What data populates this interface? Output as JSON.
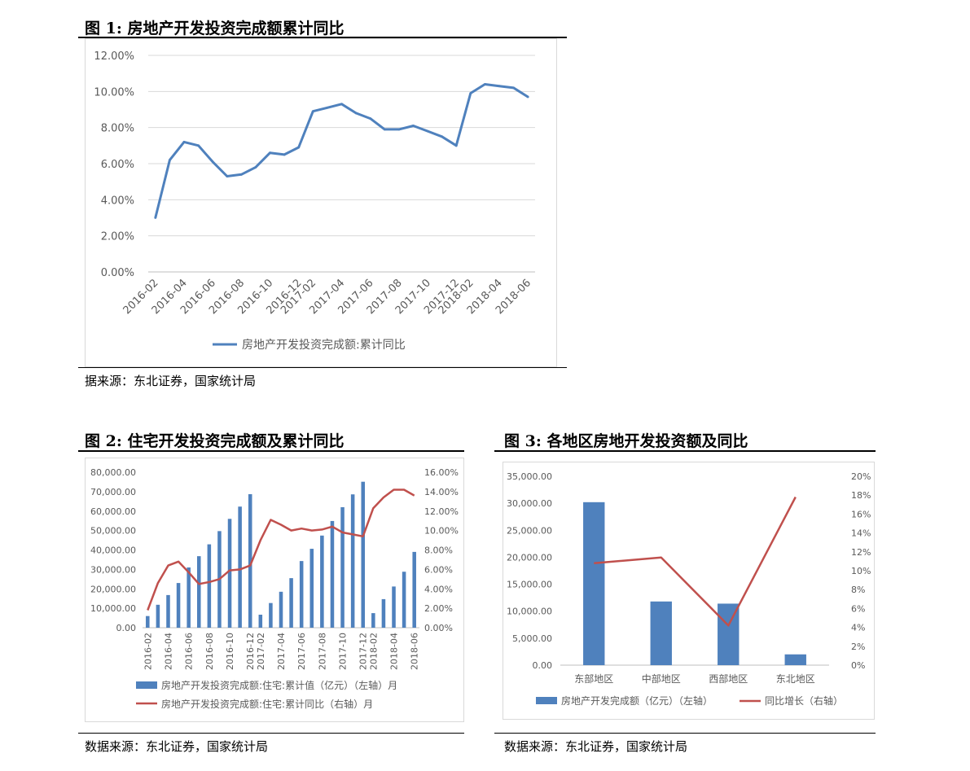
{
  "figures": [
    {
      "title": "图 1: 房地产开发投资完成额累计同比",
      "source": "据来源：东北证券，国家统计局"
    },
    {
      "title": "图 2: 住宅开发投资完成额及累计同比",
      "source": "数据来源：东北证券，国家统计局"
    },
    {
      "title": "图 3: 各地区房地开发投资额及同比",
      "source": "数据来源：东北证券，国家统计局"
    }
  ],
  "chart_data": [
    {
      "type": "line",
      "title": "",
      "ylim": [
        0,
        12
      ],
      "yticks": [
        "0.00%",
        "2.00%",
        "4.00%",
        "6.00%",
        "8.00%",
        "10.00%",
        "12.00%"
      ],
      "x_tick_labels": [
        "2016-02",
        "2016-04",
        "2016-06",
        "2016-08",
        "2016-10",
        "2016-12",
        "2017-02",
        "2017-04",
        "2017-06",
        "2017-08",
        "2017-10",
        "2017-12",
        "2018-02",
        "2018-04",
        "2018-06"
      ],
      "x": [
        "2016-02",
        "2016-03",
        "2016-04",
        "2016-05",
        "2016-06",
        "2016-07",
        "2016-08",
        "2016-09",
        "2016-10",
        "2016-11",
        "2016-12",
        "2017-02",
        "2017-03",
        "2017-04",
        "2017-05",
        "2017-06",
        "2017-07",
        "2017-08",
        "2017-09",
        "2017-10",
        "2017-11",
        "2017-12",
        "2018-02",
        "2018-03",
        "2018-04",
        "2018-05",
        "2018-06"
      ],
      "series": [
        {
          "name": "房地产开发投资完成额:累计同比",
          "color": "#4f81bd",
          "values": [
            3.0,
            6.2,
            7.2,
            7.0,
            6.1,
            5.3,
            5.4,
            5.8,
            6.6,
            6.5,
            6.9,
            8.9,
            9.1,
            9.3,
            8.8,
            8.5,
            7.9,
            7.9,
            8.1,
            7.8,
            7.5,
            7.0,
            9.9,
            10.4,
            10.3,
            10.2,
            9.7
          ]
        }
      ],
      "legend": "bottom",
      "grid": true
    },
    {
      "type": "bar+line",
      "title": "",
      "ylim_left": [
        0,
        80000
      ],
      "ylim_right": [
        0,
        16
      ],
      "yticks_left": [
        "0.00",
        "10,000.00",
        "20,000.00",
        "30,000.00",
        "40,000.00",
        "50,000.00",
        "60,000.00",
        "70,000.00",
        "80,000.00"
      ],
      "yticks_right": [
        "0.00%",
        "2.00%",
        "4.00%",
        "6.00%",
        "8.00%",
        "10.00%",
        "12.00%",
        "14.00%",
        "16.00%"
      ],
      "x_tick_labels": [
        "2016-02",
        "2016-04",
        "2016-06",
        "2016-08",
        "2016-10",
        "2016-12",
        "2017-02",
        "2017-04",
        "2017-06",
        "2017-08",
        "2017-10",
        "2017-12",
        "2018-02",
        "2018-04",
        "2018-06"
      ],
      "x": [
        "2016-02",
        "2016-03",
        "2016-04",
        "2016-05",
        "2016-06",
        "2016-07",
        "2016-08",
        "2016-09",
        "2016-10",
        "2016-11",
        "2016-12",
        "2017-02",
        "2017-03",
        "2017-04",
        "2017-05",
        "2017-06",
        "2017-07",
        "2017-08",
        "2017-09",
        "2017-10",
        "2017-11",
        "2017-12",
        "2018-02",
        "2018-03",
        "2018-04",
        "2018-05",
        "2018-06"
      ],
      "series": [
        {
          "name": "房地产开发投资完成额:住宅:累计值（亿元）（左轴）月",
          "axis": "left",
          "kind": "bar",
          "color": "#4f81bd",
          "values": [
            6000,
            11800,
            16800,
            23000,
            31000,
            36800,
            42900,
            49700,
            56000,
            62300,
            68700,
            6700,
            12700,
            18500,
            25500,
            34300,
            40600,
            47400,
            54900,
            62000,
            68600,
            75100,
            7500,
            14700,
            21200,
            28800,
            39000
          ]
        },
        {
          "name": "房地产开发投资完成额:住宅:累计同比（右轴）月",
          "axis": "right",
          "kind": "line",
          "color": "#c0504d",
          "values": [
            1.8,
            4.6,
            6.4,
            6.8,
            5.7,
            4.5,
            4.7,
            5.0,
            5.9,
            6.0,
            6.4,
            9.0,
            11.1,
            10.6,
            10.0,
            10.2,
            10.0,
            10.1,
            10.4,
            9.8,
            9.6,
            9.4,
            12.3,
            13.4,
            14.2,
            14.2,
            13.6
          ]
        }
      ],
      "legend": "bottom",
      "grid": false
    },
    {
      "type": "bar+line",
      "title": "",
      "ylim_left": [
        0,
        35000
      ],
      "ylim_right": [
        0,
        20
      ],
      "yticks_left": [
        "0.00",
        "5,000.00",
        "10,000.00",
        "15,000.00",
        "20,000.00",
        "25,000.00",
        "30,000.00",
        "35,000.00"
      ],
      "yticks_right": [
        "0%",
        "2%",
        "4%",
        "6%",
        "8%",
        "10%",
        "12%",
        "14%",
        "16%",
        "18%",
        "20%"
      ],
      "categories": [
        "东部地区",
        "中部地区",
        "西部地区",
        "东北地区"
      ],
      "series": [
        {
          "name": "房地产开发完成额（亿元）（左轴）",
          "axis": "left",
          "kind": "bar",
          "color": "#4f81bd",
          "values": [
            30200,
            11800,
            11400,
            2000
          ]
        },
        {
          "name": "同比增长（右轴）",
          "axis": "right",
          "kind": "line",
          "color": "#c0504d",
          "values": [
            10.8,
            11.4,
            4.2,
            17.8
          ]
        }
      ],
      "legend": "bottom",
      "grid": false
    }
  ]
}
